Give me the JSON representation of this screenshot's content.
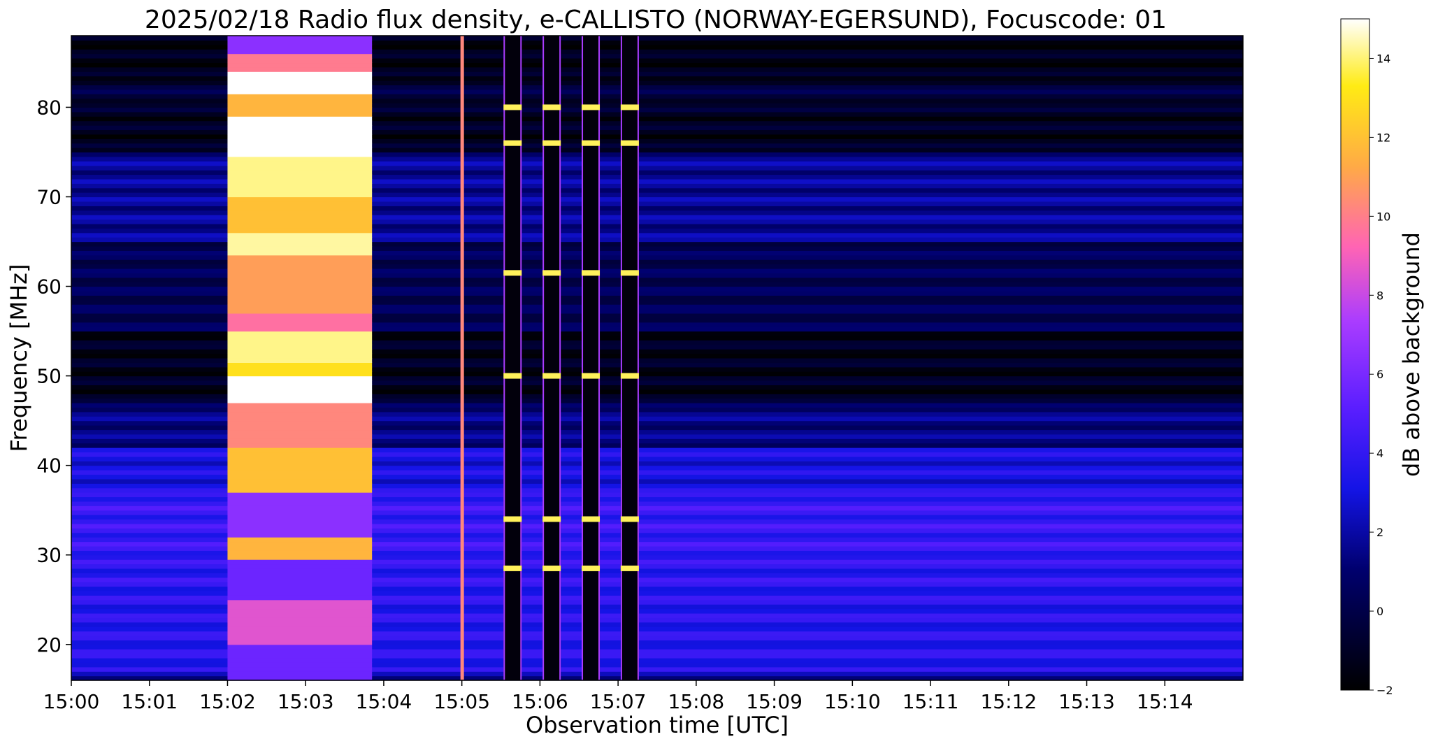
{
  "chart_data": {
    "type": "heatmap",
    "title": "2025/02/18  Radio flux density, e-CALLISTO (NORWAY-EGERSUND), Focuscode: 01",
    "xlabel": "Observation time [UTC]",
    "ylabel": "Frequency [MHz]",
    "x_ticks": [
      "15:00",
      "15:01",
      "15:02",
      "15:03",
      "15:04",
      "15:05",
      "15:06",
      "15:07",
      "15:08",
      "15:09",
      "15:10",
      "15:11",
      "15:12",
      "15:13",
      "15:14"
    ],
    "x_range_minutes": [
      0,
      15
    ],
    "y_ticks": [
      20,
      30,
      40,
      50,
      60,
      70,
      80
    ],
    "y_range": [
      16,
      88
    ],
    "colorbar": {
      "label": "dB above background",
      "ticks": [
        -2,
        0,
        2,
        4,
        6,
        8,
        10,
        12,
        14
      ],
      "range": [
        -2,
        15
      ],
      "colormap": "gnuplot2"
    },
    "bright_burst": {
      "start_minute": 2.0,
      "end_minute": 3.85
    },
    "calibration_spikes_minutes": [
      5.0,
      5.65,
      6.15,
      6.65,
      7.15
    ],
    "calibration_bright_frequencies": [
      80,
      76,
      61.5,
      50,
      34,
      28.5
    ]
  }
}
